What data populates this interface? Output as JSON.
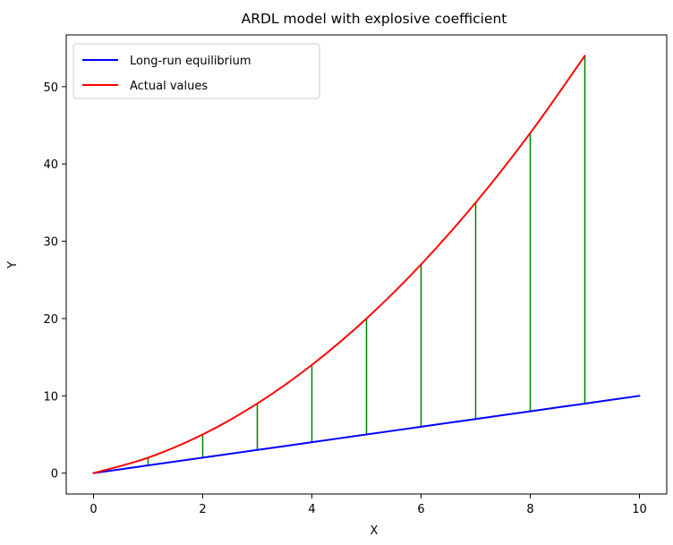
{
  "chart_data": {
    "type": "line",
    "title": "ARDL model with explosive coefficient",
    "xlabel": "X",
    "ylabel": "Y",
    "xlim": [
      -0.5,
      10.5
    ],
    "ylim": [
      -2.7,
      56.7
    ],
    "xticks": [
      0,
      2,
      4,
      6,
      8,
      10
    ],
    "yticks": [
      0,
      10,
      20,
      30,
      40,
      50
    ],
    "grid": false,
    "legend_position": "top-left",
    "series": [
      {
        "name": "Long-run equilibrium",
        "color": "#0000ff",
        "x": [
          0,
          1,
          2,
          3,
          4,
          5,
          6,
          7,
          8,
          9,
          10
        ],
        "y": [
          0,
          1,
          2,
          3,
          4,
          5,
          6,
          7,
          8,
          9,
          10
        ]
      },
      {
        "name": "Actual values",
        "color": "#ff0000",
        "x": [
          0,
          1,
          2,
          3,
          4,
          5,
          6,
          7,
          8,
          9
        ],
        "y": [
          0,
          2,
          5,
          9,
          14,
          20,
          27,
          35,
          44,
          54
        ]
      }
    ],
    "deviation_lines": {
      "color": "#008000",
      "x": [
        1,
        2,
        3,
        4,
        5,
        6,
        7,
        8,
        9
      ],
      "y_from": [
        1,
        2,
        3,
        4,
        5,
        6,
        7,
        8,
        9
      ],
      "y_to": [
        2,
        5,
        9,
        14,
        20,
        27,
        35,
        44,
        54
      ]
    }
  }
}
